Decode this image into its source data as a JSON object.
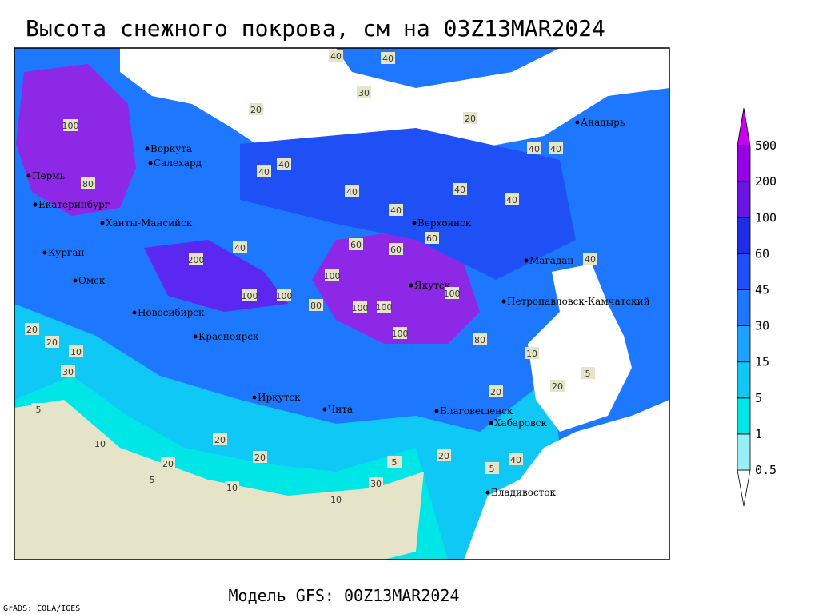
{
  "title": "Высота снежного покрова, см на 03Z13MAR2024",
  "footer": "Модель GFS: 00Z13MAR2024",
  "credit": "GrADS: COLA/IGES",
  "legend": {
    "levels": [
      0.5,
      1,
      5,
      15,
      30,
      45,
      60,
      100,
      200,
      500
    ],
    "colors": [
      "#ffffff",
      "#96f0fa",
      "#00e6e6",
      "#10c8f5",
      "#1ea0ff",
      "#1e78ff",
      "#1e50f5",
      "#1e2ee6",
      "#6a14e6",
      "#9600e6",
      "#c800f0"
    ]
  },
  "cities": [
    "Воркута",
    "Салехард",
    "Пермь",
    "Екатеринбург",
    "Ханты-Мансийск",
    "Курган",
    "Омск",
    "Новосибирск",
    "Красноярск",
    "Иркутск",
    "Чита",
    "Верхоянск",
    "Якутск",
    "Магадан",
    "Петропавловск-Камчатский",
    "Анадырь",
    "Благовещенск",
    "Хабаровск",
    "Владивосток"
  ],
  "value_labels": [
    40,
    40,
    30,
    40,
    20,
    20,
    40,
    100,
    80,
    200,
    100,
    100,
    40,
    40,
    40,
    40,
    40,
    60,
    60,
    60,
    100,
    100,
    80,
    100,
    100,
    100,
    80,
    40,
    40,
    20,
    10,
    20,
    30,
    5,
    10,
    20,
    20,
    10,
    20,
    5,
    20,
    40,
    5,
    10,
    30,
    5,
    20,
    40,
    5,
    10,
    20
  ]
}
